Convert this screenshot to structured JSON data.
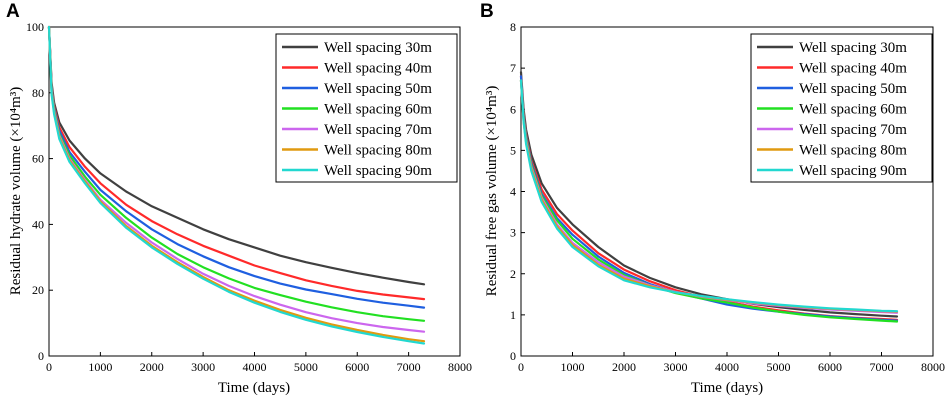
{
  "chart_data": [
    {
      "type": "line",
      "panel_label": "A",
      "xlabel": "Time (days)",
      "ylabel": "Residual hydrate volume (×10⁴m³)",
      "xlim": [
        0,
        8000
      ],
      "ylim": [
        0,
        100
      ],
      "xticks": [
        0,
        1000,
        2000,
        3000,
        4000,
        5000,
        6000,
        7000,
        8000
      ],
      "yticks": [
        0,
        20,
        40,
        60,
        80,
        100
      ],
      "legend_position": "top-right",
      "x": [
        0,
        50,
        100,
        200,
        400,
        700,
        1000,
        1500,
        2000,
        2500,
        3000,
        3500,
        4000,
        4500,
        5000,
        5500,
        6000,
        6500,
        7000,
        7300
      ],
      "series": [
        {
          "name": "Well spacing 30m",
          "color": "#404040",
          "values": [
            100,
            83,
            77,
            71,
            65.5,
            60,
            55.5,
            50,
            45.5,
            42,
            38.5,
            35.5,
            33,
            30.5,
            28.5,
            26.8,
            25.2,
            23.8,
            22.5,
            21.8
          ]
        },
        {
          "name": "Well spacing 40m",
          "color": "#ff2a2a",
          "values": [
            100,
            82,
            76,
            69.5,
            63.5,
            57.5,
            52.5,
            46,
            41,
            37,
            33.5,
            30.5,
            27.5,
            25.2,
            23,
            21.3,
            19.8,
            18.7,
            17.8,
            17.3
          ]
        },
        {
          "name": "Well spacing 50m",
          "color": "#1f5fe0",
          "values": [
            100,
            81.5,
            75.5,
            68.5,
            62,
            56,
            50.5,
            44,
            38.5,
            34,
            30.3,
            27,
            24.3,
            22,
            20.2,
            18.8,
            17.4,
            16.2,
            15.3,
            14.7
          ]
        },
        {
          "name": "Well spacing 60m",
          "color": "#22e022",
          "values": [
            100,
            81,
            75,
            67.5,
            61,
            54.5,
            49,
            42,
            36,
            31,
            27,
            23.6,
            20.7,
            18.5,
            16.5,
            14.8,
            13.3,
            12.1,
            11.2,
            10.7
          ]
        },
        {
          "name": "Well spacing 70m",
          "color": "#cc66ee",
          "values": [
            100,
            80.5,
            74.5,
            67,
            60,
            53.5,
            47.5,
            40.5,
            34.5,
            29.5,
            25,
            21.3,
            18.2,
            15.6,
            13.3,
            11.5,
            10,
            8.8,
            7.9,
            7.4
          ]
        },
        {
          "name": "Well spacing 80m",
          "color": "#e09a10",
          "values": [
            100,
            80,
            74,
            66.5,
            59.5,
            53,
            47,
            39.5,
            33.5,
            28.5,
            24,
            20,
            16.8,
            14,
            11.6,
            9.6,
            7.9,
            6.4,
            5.1,
            4.5
          ]
        },
        {
          "name": "Well spacing 90m",
          "color": "#22d8d0",
          "values": [
            100,
            79.5,
            73.5,
            66,
            59,
            52.5,
            46.5,
            39,
            33,
            28,
            23.5,
            19.5,
            16.2,
            13.4,
            11,
            9,
            7.3,
            5.8,
            4.5,
            3.8
          ]
        }
      ]
    },
    {
      "type": "line",
      "panel_label": "B",
      "xlabel": "Time (days)",
      "ylabel": "Residual free gas volume (×10⁴m³)",
      "xlim": [
        0,
        8000
      ],
      "ylim": [
        0,
        8
      ],
      "xticks": [
        0,
        1000,
        2000,
        3000,
        4000,
        5000,
        6000,
        7000,
        8000
      ],
      "yticks": [
        0,
        1,
        2,
        3,
        4,
        5,
        6,
        7,
        8
      ],
      "legend_position": "top-right",
      "x": [
        0,
        50,
        100,
        200,
        400,
        700,
        1000,
        1500,
        2000,
        2500,
        3000,
        3500,
        4000,
        4500,
        5000,
        5500,
        6000,
        6500,
        7000,
        7300
      ],
      "series": [
        {
          "name": "Well spacing 30m",
          "color": "#404040",
          "values": [
            6.9,
            6.0,
            5.5,
            4.9,
            4.2,
            3.6,
            3.2,
            2.65,
            2.2,
            1.9,
            1.67,
            1.5,
            1.38,
            1.27,
            1.19,
            1.12,
            1.06,
            1.02,
            0.98,
            0.96
          ]
        },
        {
          "name": "Well spacing 40m",
          "color": "#ff2a2a",
          "values": [
            6.8,
            5.9,
            5.4,
            4.75,
            4.05,
            3.45,
            3.05,
            2.5,
            2.1,
            1.82,
            1.6,
            1.44,
            1.32,
            1.2,
            1.11,
            1.03,
            0.97,
            0.93,
            0.9,
            0.88
          ]
        },
        {
          "name": "Well spacing 50m",
          "color": "#1f5fe0",
          "values": [
            6.8,
            5.85,
            5.35,
            4.7,
            3.95,
            3.35,
            2.95,
            2.42,
            2.02,
            1.75,
            1.55,
            1.4,
            1.25,
            1.15,
            1.08,
            1.02,
            0.96,
            0.92,
            0.88,
            0.86
          ]
        },
        {
          "name": "Well spacing 60m",
          "color": "#22e022",
          "values": [
            6.7,
            5.8,
            5.3,
            4.65,
            3.9,
            3.3,
            2.85,
            2.35,
            1.97,
            1.72,
            1.53,
            1.4,
            1.3,
            1.18,
            1.08,
            1.0,
            0.94,
            0.9,
            0.86,
            0.84
          ]
        },
        {
          "name": "Well spacing 70m",
          "color": "#cc66ee",
          "values": [
            6.7,
            5.75,
            5.25,
            4.6,
            3.85,
            3.2,
            2.75,
            2.28,
            1.93,
            1.72,
            1.56,
            1.44,
            1.36,
            1.28,
            1.22,
            1.17,
            1.13,
            1.1,
            1.07,
            1.05
          ]
        },
        {
          "name": "Well spacing 80m",
          "color": "#e09a10",
          "values": [
            6.7,
            5.7,
            5.2,
            4.55,
            3.8,
            3.15,
            2.7,
            2.22,
            1.88,
            1.7,
            1.55,
            1.45,
            1.37,
            1.3,
            1.24,
            1.19,
            1.15,
            1.12,
            1.09,
            1.08
          ]
        },
        {
          "name": "Well spacing 90m",
          "color": "#22d8d0",
          "values": [
            6.7,
            5.7,
            5.15,
            4.5,
            3.75,
            3.1,
            2.65,
            2.18,
            1.84,
            1.67,
            1.55,
            1.46,
            1.38,
            1.31,
            1.25,
            1.2,
            1.16,
            1.13,
            1.1,
            1.09
          ]
        }
      ]
    }
  ]
}
